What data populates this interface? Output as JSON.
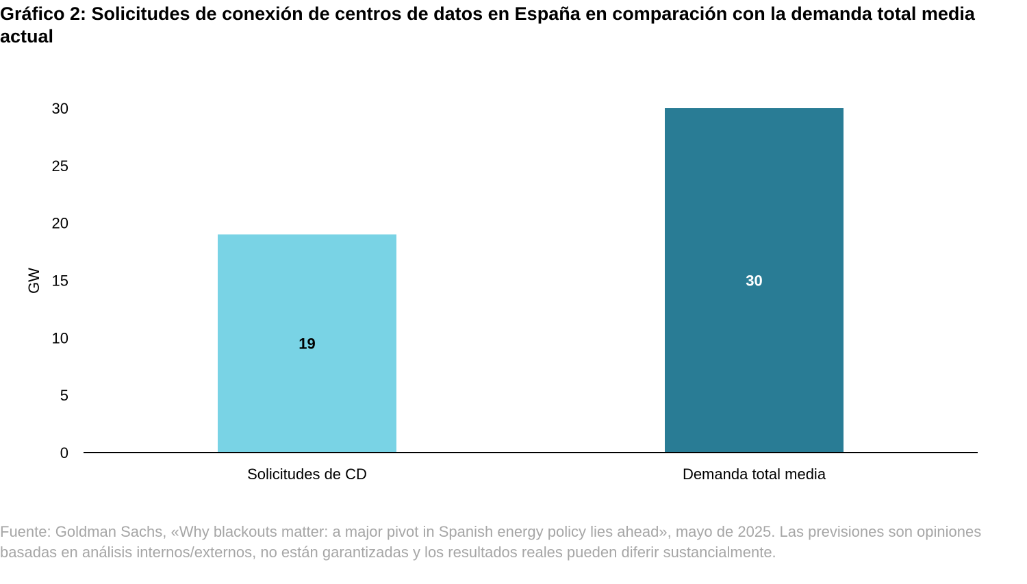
{
  "title": "Gráfico 2: Solicitudes de conexión de centros de datos en España en comparación con la demanda total media actual",
  "source": "Fuente: Goldman Sachs, «Why blackouts matter: a major pivot in Spanish energy policy lies ahead», mayo de 2025. Las previsiones son opiniones basadas en análisis internos/externos, no están garantizadas y los resultados reales pueden diferir sustancialmente.",
  "chart_data": {
    "type": "bar",
    "title": "Gráfico 2: Solicitudes de conexión de centros de datos en España en comparación con la demanda total media actual",
    "categories": [
      "Solicitudes de CD",
      "Demanda total media"
    ],
    "values": [
      19,
      30
    ],
    "data_labels": [
      "19",
      "30"
    ],
    "bar_colors": [
      "#79d3e5",
      "#297c95"
    ],
    "data_label_colors": [
      "#000000",
      "#ffffff"
    ],
    "xlabel": "",
    "ylabel": "GW",
    "ylim": [
      0,
      30
    ],
    "yticks": [
      0,
      5,
      10,
      15,
      20,
      25,
      30
    ],
    "grid": false,
    "legend": "none"
  }
}
